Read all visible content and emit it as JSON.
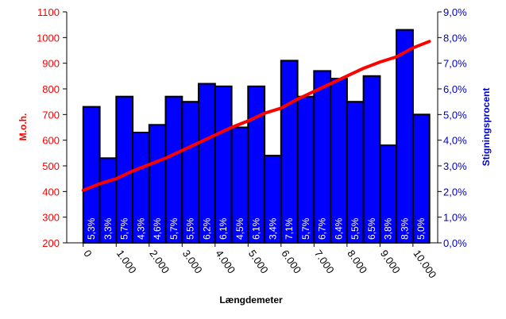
{
  "chart_data": {
    "type": "bar",
    "xlabel": "Længdemeter",
    "ylabel_left": "M.o.h.",
    "ylabel_right": "Stigningsprocent",
    "ylim_left": [
      200,
      1100
    ],
    "ylim_right": [
      0,
      9
    ],
    "left_ticks": [
      "200",
      "300",
      "400",
      "500",
      "600",
      "700",
      "800",
      "900",
      "1000",
      "1100"
    ],
    "right_ticks": [
      "0,0%",
      "1,0%",
      "2,0%",
      "3,0%",
      "4,0%",
      "5,0%",
      "6,0%",
      "7,0%",
      "8,0%",
      "9,0%"
    ],
    "x_ticks": [
      "0",
      "1.000",
      "2.000",
      "3.000",
      "4.000",
      "5.000",
      "6.000",
      "7.000",
      "8.000",
      "9.000",
      "10.000"
    ],
    "colors": {
      "bars": "#0000ff",
      "line": "#ff0000",
      "left_axis": "#ff0000",
      "right_axis": "#0000cc"
    },
    "series": [
      {
        "type": "bar",
        "axis": "right",
        "x": [
          250,
          750,
          1250,
          1750,
          2250,
          2750,
          3250,
          3750,
          4250,
          4750,
          5250,
          5750,
          6250,
          6750,
          7250,
          7750,
          8250,
          8750,
          9250,
          9750,
          10250
        ],
        "values": [
          5.3,
          3.3,
          5.7,
          4.3,
          4.6,
          5.7,
          5.5,
          6.2,
          6.1,
          4.5,
          6.1,
          3.4,
          7.1,
          5.7,
          6.7,
          6.4,
          5.5,
          6.5,
          3.8,
          8.3,
          5.0
        ],
        "labels": [
          "5,3%",
          "3,3%",
          "5,7%",
          "4,3%",
          "4,6%",
          "5,7%",
          "5,5%",
          "6,2%",
          "6,1%",
          "4,5%",
          "6,1%",
          "3,4%",
          "7,1%",
          "5,7%",
          "6,7%",
          "6,4%",
          "5,5%",
          "6,5%",
          "3,8%",
          "8,3%",
          "5,0%"
        ]
      },
      {
        "type": "line",
        "axis": "left",
        "x": [
          0,
          500,
          1000,
          1500,
          2000,
          2500,
          3000,
          3500,
          4000,
          4500,
          5000,
          5500,
          6000,
          6500,
          7000,
          7500,
          8000,
          8500,
          9000,
          9500,
          10000,
          10500
        ],
        "values": [
          405,
          430,
          450,
          480,
          505,
          530,
          560,
          590,
          620,
          650,
          675,
          705,
          725,
          760,
          790,
          820,
          850,
          880,
          905,
          925,
          960,
          985
        ]
      }
    ],
    "grid": false,
    "legend": "none"
  }
}
